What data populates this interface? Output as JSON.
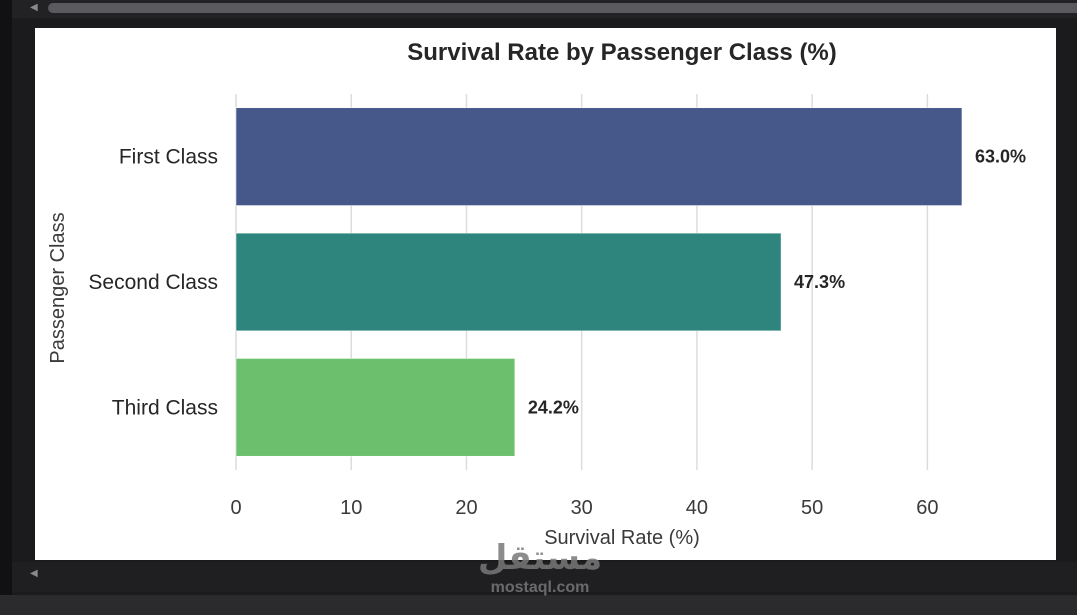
{
  "chart_data": {
    "type": "bar",
    "orientation": "horizontal",
    "title": "Survival Rate by Passenger Class (%)",
    "xlabel": "Survival Rate (%)",
    "ylabel": "Passenger Class",
    "categories": [
      "First Class",
      "Second Class",
      "Third Class"
    ],
    "values": [
      63.0,
      47.3,
      24.2
    ],
    "value_labels": [
      "63.0%",
      "47.3%",
      "24.2%"
    ],
    "colors": [
      "#46578a",
      "#2e857d",
      "#6cbf6d"
    ],
    "xlim": [
      0,
      65
    ],
    "xticks": [
      0,
      10,
      20,
      30,
      40,
      50,
      60
    ],
    "xtick_labels": [
      "0",
      "10",
      "20",
      "30",
      "40",
      "50",
      "60"
    ],
    "grid": "vertical"
  },
  "watermark": {
    "logo_text": "مستقل",
    "site": "mostaql.com"
  }
}
